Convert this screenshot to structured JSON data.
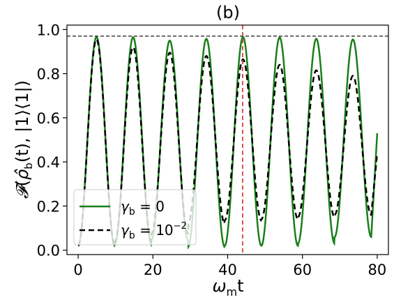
{
  "chart_data": {
    "type": "line",
    "title": "(b)",
    "xlabel": "ω_m t",
    "ylabel": "F(ρ̂_b(t), |1⟩⟨1|)",
    "xlim": [
      -3,
      83
    ],
    "ylim": [
      -0.02,
      1.02
    ],
    "xticks": [
      0,
      20,
      40,
      60,
      80
    ],
    "yticks": [
      0.0,
      0.2,
      0.4,
      0.6,
      0.8,
      1.0
    ],
    "xtick_labels": [
      "0",
      "20",
      "40",
      "60",
      "80"
    ],
    "ytick_labels": [
      "0.0",
      "0.2",
      "0.4",
      "0.6",
      "0.8",
      "1.0"
    ],
    "grid": false,
    "legend_position": "lower-left",
    "hline": {
      "y": 0.97,
      "color": "#000000",
      "style": "dashed"
    },
    "vline": {
      "x": 44,
      "color": "#d62728",
      "style": "dashed"
    },
    "period": 9.8,
    "series": [
      {
        "name": "γ_b = 0",
        "color": "#1a7f1a",
        "style": "solid",
        "peaks": [
          0.966,
          0.965,
          0.95,
          0.958,
          0.966,
          0.964,
          0.958,
          0.955
        ],
        "troughs": [
          0.02,
          0.025,
          0.045,
          0.015,
          0.02,
          0.02,
          0.03,
          0.06
        ],
        "end_value": 0.53
      },
      {
        "name": "γ_b = 10^−2",
        "color": "#000000",
        "style": "dashed",
        "peaks": [
          0.955,
          0.92,
          0.895,
          0.88,
          0.865,
          0.84,
          0.815,
          0.79
        ],
        "troughs": [
          0.02,
          0.04,
          0.075,
          0.12,
          0.135,
          0.14,
          0.15,
          0.16
        ],
        "end_value": 0.44
      }
    ],
    "legend": {
      "labels": [
        "γ",
        "b",
        "= 0",
        "= 10",
        "−2"
      ]
    }
  }
}
